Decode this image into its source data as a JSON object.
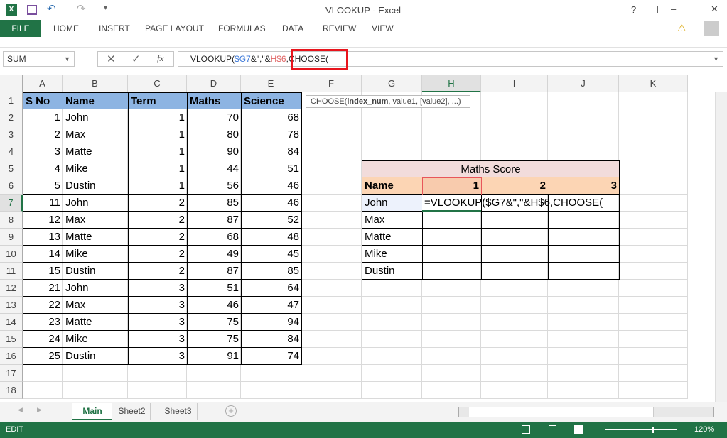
{
  "window": {
    "title": "VLOOKUP - Excel",
    "help": "?",
    "minimize": "–",
    "close": "✕"
  },
  "ribbon": {
    "file": "FILE",
    "tabs": [
      "HOME",
      "INSERT",
      "PAGE LAYOUT",
      "FORMULAS",
      "DATA",
      "REVIEW",
      "VIEW"
    ]
  },
  "formula_bar": {
    "name_box": "SUM",
    "fx": "fx",
    "formula_parts": [
      {
        "t": "=VLOOKUP(",
        "c": "#222"
      },
      {
        "t": "$G7",
        "c": "#3c78d8"
      },
      {
        "t": "&\",\"&",
        "c": "#222"
      },
      {
        "t": "H$6",
        "c": "#e06666"
      },
      {
        "t": ",CHOOSE(",
        "c": "#222"
      }
    ],
    "tooltip_prefix": "CHOOSE(",
    "tooltip_bold": "index_num",
    "tooltip_rest": ", value1, [value2], ...)"
  },
  "columns": [
    "A",
    "B",
    "C",
    "D",
    "E",
    "F",
    "G",
    "H",
    "I",
    "J",
    "K"
  ],
  "rows": [
    "1",
    "2",
    "3",
    "4",
    "5",
    "6",
    "7",
    "8",
    "9",
    "10",
    "11",
    "12",
    "13",
    "14",
    "15",
    "16",
    "17",
    "18"
  ],
  "table": {
    "headers": [
      "S No",
      "Name",
      "Term",
      "Maths",
      "Science"
    ],
    "rows": [
      [
        1,
        "John",
        1,
        70,
        68
      ],
      [
        2,
        "Max",
        1,
        80,
        78
      ],
      [
        3,
        "Matte",
        1,
        90,
        84
      ],
      [
        4,
        "Mike",
        1,
        44,
        51
      ],
      [
        5,
        "Dustin",
        1,
        56,
        46
      ],
      [
        11,
        "John",
        2,
        85,
        46
      ],
      [
        12,
        "Max",
        2,
        87,
        52
      ],
      [
        13,
        "Matte",
        2,
        68,
        48
      ],
      [
        14,
        "Mike",
        2,
        49,
        45
      ],
      [
        15,
        "Dustin",
        2,
        87,
        85
      ],
      [
        21,
        "John",
        3,
        51,
        64
      ],
      [
        22,
        "Max",
        3,
        46,
        47
      ],
      [
        23,
        "Matte",
        3,
        75,
        94
      ],
      [
        24,
        "Mike",
        3,
        75,
        84
      ],
      [
        25,
        "Dustin",
        3,
        91,
        74
      ]
    ]
  },
  "score": {
    "title": "Maths Score",
    "name_header": "Name",
    "terms": [
      "1",
      "2",
      "3"
    ],
    "names": [
      "John",
      "Max",
      "Matte",
      "Mike",
      "Dustin"
    ],
    "edit_text": "=VLOOKUP($G7&\",\"&H$6,CHOOSE("
  },
  "sheets": [
    "Main",
    "Sheet2",
    "Sheet3"
  ],
  "status": {
    "mode": "EDIT",
    "zoom": "120%"
  },
  "colors": {
    "accent": "#217346",
    "header_fill": "#8db4e2",
    "score_title_fill": "#f2dcdb",
    "score_header_fill": "#fcd5b4"
  }
}
